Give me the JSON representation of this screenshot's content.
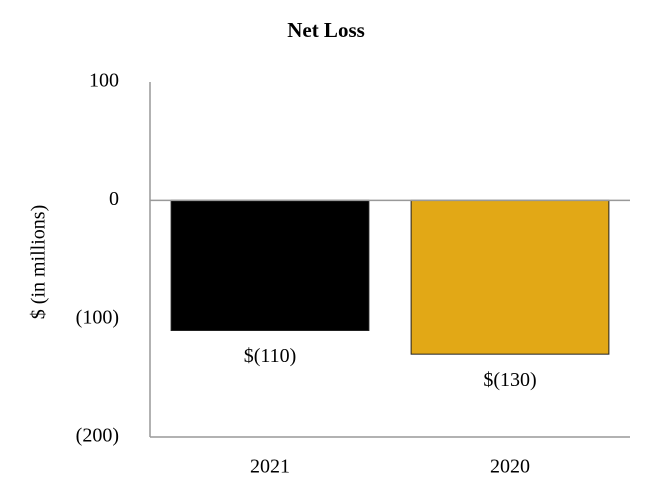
{
  "chart_data": {
    "type": "bar",
    "title": "Net Loss",
    "y_label": "$ (in millions)",
    "categories": [
      "2021",
      "2020"
    ],
    "values": [
      -110,
      -130
    ],
    "value_labels": [
      "$(110)",
      "$(130)"
    ],
    "colors": [
      "#000000",
      "#e2a816"
    ],
    "ylim": [
      -200,
      100
    ],
    "yticks": [
      100,
      0,
      {
        "value": -100,
        "label": "(100)"
      },
      {
        "value": -200,
        "label": "(200)"
      }
    ],
    "grid": false
  }
}
